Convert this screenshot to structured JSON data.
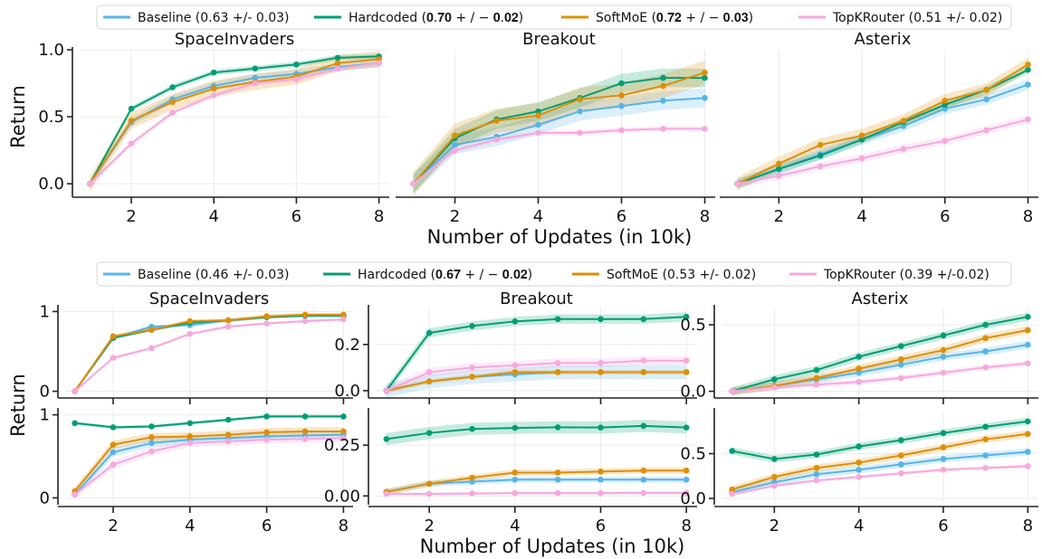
{
  "colors": {
    "Baseline": "#56b4e9",
    "Hardcoded": "#009e73",
    "SoftMoE": "#de8f05",
    "TopKRouter": "#f7a8dd"
  },
  "labels": {
    "xlabel": "Number of Updates (in 10k)",
    "ylabel": "Return"
  },
  "legends": {
    "top": [
      {
        "name": "Baseline",
        "text": "Baseline (0.63 +/- 0.03)"
      },
      {
        "name": "Hardcoded",
        "text": "Hardcoded (𝟎.𝟕𝟎 + / − 𝟎.𝟎𝟐)"
      },
      {
        "name": "SoftMoE",
        "text": "SoftMoE (𝟎.𝟕𝟐 + / − 𝟎.𝟎𝟑)"
      },
      {
        "name": "TopKRouter",
        "text": "TopKRouter (0.51 +/- 0.02)"
      }
    ],
    "bottom": [
      {
        "name": "Baseline",
        "text": "Baseline (0.46 +/- 0.03)"
      },
      {
        "name": "Hardcoded",
        "text": "Hardcoded (𝟎.𝟔𝟕 + / − 𝟎.𝟎𝟐)"
      },
      {
        "name": "SoftMoE",
        "text": "SoftMoE (0.53 +/- 0.02)"
      },
      {
        "name": "TopKRouter",
        "text": "TopKRouter (0.39 +/-0.02)"
      }
    ]
  },
  "chart_data": [
    {
      "type": "line",
      "title": "SpaceInvaders",
      "x": [
        1,
        2,
        3,
        4,
        5,
        6,
        7,
        8
      ],
      "ylim": [
        -0.08,
        1.0
      ],
      "yticks": [
        0.0,
        0.5,
        1.0
      ],
      "ytick_labels": [
        "0.0",
        "0.5",
        "1.0"
      ],
      "series": [
        {
          "name": "Baseline",
          "values": [
            0.0,
            0.46,
            0.63,
            0.73,
            0.79,
            0.82,
            0.87,
            0.9
          ],
          "band": 0.03
        },
        {
          "name": "Hardcoded",
          "values": [
            0.0,
            0.56,
            0.72,
            0.83,
            0.86,
            0.89,
            0.94,
            0.95
          ],
          "band": 0.02
        },
        {
          "name": "SoftMoE",
          "values": [
            0.0,
            0.47,
            0.61,
            0.71,
            0.76,
            0.8,
            0.9,
            0.93
          ],
          "band": 0.06
        },
        {
          "name": "TopKRouter",
          "values": [
            0.0,
            0.3,
            0.53,
            0.66,
            0.75,
            0.78,
            0.86,
            0.9
          ],
          "band": 0.02
        }
      ]
    },
    {
      "type": "line",
      "title": "Breakout",
      "x": [
        1,
        2,
        3,
        4,
        5,
        6,
        7,
        8
      ],
      "ylim": [
        -0.08,
        1.0
      ],
      "series": [
        {
          "name": "Baseline",
          "values": [
            0.0,
            0.29,
            0.35,
            0.44,
            0.54,
            0.58,
            0.62,
            0.64
          ],
          "band": 0.07
        },
        {
          "name": "Hardcoded",
          "values": [
            0.0,
            0.34,
            0.48,
            0.54,
            0.64,
            0.75,
            0.79,
            0.79
          ],
          "band": 0.07
        },
        {
          "name": "SoftMoE",
          "values": [
            0.0,
            0.36,
            0.47,
            0.51,
            0.63,
            0.66,
            0.73,
            0.83
          ],
          "band": 0.09
        },
        {
          "name": "TopKRouter",
          "values": [
            0.0,
            0.25,
            0.33,
            0.38,
            0.38,
            0.4,
            0.41,
            0.41
          ],
          "band": 0.02
        }
      ]
    },
    {
      "type": "line",
      "title": "Asterix",
      "x": [
        1,
        2,
        3,
        4,
        5,
        6,
        7,
        8
      ],
      "ylim": [
        -0.08,
        1.0
      ],
      "series": [
        {
          "name": "Baseline",
          "values": [
            0.0,
            0.11,
            0.22,
            0.33,
            0.43,
            0.56,
            0.63,
            0.74
          ],
          "band": 0.04
        },
        {
          "name": "Hardcoded",
          "values": [
            0.0,
            0.11,
            0.21,
            0.33,
            0.46,
            0.59,
            0.7,
            0.85
          ],
          "band": 0.03
        },
        {
          "name": "SoftMoE",
          "values": [
            0.0,
            0.15,
            0.29,
            0.36,
            0.47,
            0.62,
            0.7,
            0.89
          ],
          "band": 0.05
        },
        {
          "name": "TopKRouter",
          "values": [
            0.0,
            0.06,
            0.13,
            0.19,
            0.26,
            0.32,
            0.4,
            0.48
          ],
          "band": 0.03
        }
      ]
    },
    {
      "type": "line",
      "title": "SpaceInvaders",
      "x": [
        1,
        2,
        3,
        4,
        5,
        6,
        7,
        8
      ],
      "ylim": [
        -0.05,
        1.05
      ],
      "yticks": [
        0,
        1
      ],
      "ytick_labels": [
        "0",
        "1"
      ],
      "series": [
        {
          "name": "Baseline",
          "values": [
            0.0,
            0.67,
            0.81,
            0.83,
            0.89,
            0.93,
            0.95,
            0.95
          ],
          "band": 0.02
        },
        {
          "name": "Hardcoded",
          "values": [
            0.0,
            0.67,
            0.77,
            0.86,
            0.89,
            0.93,
            0.95,
            0.95
          ],
          "band": 0.02
        },
        {
          "name": "SoftMoE",
          "values": [
            0.0,
            0.69,
            0.77,
            0.88,
            0.89,
            0.94,
            0.96,
            0.96
          ],
          "band": 0.02
        },
        {
          "name": "TopKRouter",
          "values": [
            0.0,
            0.42,
            0.54,
            0.72,
            0.81,
            0.85,
            0.88,
            0.9
          ],
          "band": 0.02
        }
      ]
    },
    {
      "type": "line",
      "x": [
        1,
        2,
        3,
        4,
        5,
        6,
        7,
        8
      ],
      "ylim": [
        -0.05,
        1.05
      ],
      "yticks": [
        0,
        1
      ],
      "ytick_labels": [
        "0",
        "1"
      ],
      "series": [
        {
          "name": "Baseline",
          "values": [
            0.04,
            0.55,
            0.66,
            0.7,
            0.72,
            0.74,
            0.75,
            0.76
          ],
          "band": 0.05
        },
        {
          "name": "Hardcoded",
          "values": [
            0.9,
            0.85,
            0.86,
            0.9,
            0.94,
            0.98,
            0.98,
            0.98
          ],
          "band": 0.02
        },
        {
          "name": "SoftMoE",
          "values": [
            0.08,
            0.64,
            0.73,
            0.74,
            0.76,
            0.79,
            0.8,
            0.8
          ],
          "band": 0.05
        },
        {
          "name": "TopKRouter",
          "values": [
            0.04,
            0.4,
            0.56,
            0.66,
            0.68,
            0.7,
            0.71,
            0.72
          ],
          "band": 0.05
        }
      ]
    },
    {
      "type": "line",
      "title": "Breakout",
      "x": [
        1,
        2,
        3,
        4,
        5,
        6,
        7,
        8
      ],
      "ylim": [
        -0.02,
        0.36
      ],
      "yticks": [
        0.0,
        0.2
      ],
      "ytick_labels": [
        "0.0",
        "0.2"
      ],
      "series": [
        {
          "name": "Baseline",
          "values": [
            0.0,
            0.04,
            0.06,
            0.07,
            0.08,
            0.08,
            0.08,
            0.08
          ],
          "band": 0.03
        },
        {
          "name": "Hardcoded",
          "values": [
            0.0,
            0.25,
            0.28,
            0.3,
            0.31,
            0.31,
            0.31,
            0.32
          ],
          "band": 0.02
        },
        {
          "name": "SoftMoE",
          "values": [
            0.0,
            0.04,
            0.06,
            0.08,
            0.08,
            0.08,
            0.08,
            0.08
          ],
          "band": 0.01
        },
        {
          "name": "TopKRouter",
          "values": [
            0.0,
            0.08,
            0.1,
            0.11,
            0.12,
            0.12,
            0.13,
            0.13
          ],
          "band": 0.02
        }
      ]
    },
    {
      "type": "line",
      "x": [
        1,
        2,
        3,
        4,
        5,
        6,
        7,
        8
      ],
      "ylim": [
        -0.03,
        0.42
      ],
      "yticks": [
        0.0,
        0.25
      ],
      "ytick_labels": [
        "0.00",
        "0.25"
      ],
      "series": [
        {
          "name": "Baseline",
          "values": [
            0.02,
            0.06,
            0.07,
            0.08,
            0.08,
            0.08,
            0.08,
            0.08
          ],
          "band": 0.015
        },
        {
          "name": "Hardcoded",
          "values": [
            0.28,
            0.31,
            0.33,
            0.335,
            0.338,
            0.337,
            0.345,
            0.337
          ],
          "band": 0.03
        },
        {
          "name": "SoftMoE",
          "values": [
            0.02,
            0.06,
            0.09,
            0.115,
            0.115,
            0.12,
            0.125,
            0.125
          ],
          "band": 0.015
        },
        {
          "name": "TopKRouter",
          "values": [
            0.01,
            0.01,
            0.012,
            0.014,
            0.014,
            0.014,
            0.015,
            0.015
          ],
          "band": 0.008
        }
      ]
    },
    {
      "type": "line",
      "title": "Asterix",
      "x": [
        1,
        2,
        3,
        4,
        5,
        6,
        7,
        8
      ],
      "ylim": [
        -0.03,
        0.63
      ],
      "yticks": [
        0.0,
        0.5
      ],
      "ytick_labels": [
        "0.0",
        "0.5"
      ],
      "series": [
        {
          "name": "Baseline",
          "values": [
            0.0,
            0.04,
            0.09,
            0.14,
            0.2,
            0.26,
            0.3,
            0.35
          ],
          "band": 0.03
        },
        {
          "name": "Hardcoded",
          "values": [
            0.0,
            0.09,
            0.16,
            0.26,
            0.34,
            0.42,
            0.5,
            0.56
          ],
          "band": 0.03
        },
        {
          "name": "SoftMoE",
          "values": [
            0.0,
            0.04,
            0.1,
            0.17,
            0.24,
            0.31,
            0.4,
            0.46
          ],
          "band": 0.03
        },
        {
          "name": "TopKRouter",
          "values": [
            0.0,
            0.03,
            0.05,
            0.07,
            0.1,
            0.14,
            0.18,
            0.21
          ],
          "band": 0.02
        }
      ]
    },
    {
      "type": "line",
      "x": [
        1,
        2,
        3,
        4,
        5,
        6,
        7,
        8
      ],
      "ylim": [
        -0.04,
        0.98
      ],
      "yticks": [
        0.0,
        0.5
      ],
      "ytick_labels": [
        "0.0",
        "0.5"
      ],
      "series": [
        {
          "name": "Baseline",
          "values": [
            0.07,
            0.18,
            0.27,
            0.32,
            0.38,
            0.44,
            0.48,
            0.52
          ],
          "band": 0.04
        },
        {
          "name": "Hardcoded",
          "values": [
            0.53,
            0.44,
            0.49,
            0.58,
            0.65,
            0.73,
            0.8,
            0.86
          ],
          "band": 0.04
        },
        {
          "name": "SoftMoE",
          "values": [
            0.1,
            0.24,
            0.34,
            0.4,
            0.48,
            0.57,
            0.66,
            0.72
          ],
          "band": 0.04
        },
        {
          "name": "TopKRouter",
          "values": [
            0.05,
            0.14,
            0.2,
            0.24,
            0.28,
            0.32,
            0.34,
            0.36
          ],
          "band": 0.02
        }
      ]
    }
  ]
}
